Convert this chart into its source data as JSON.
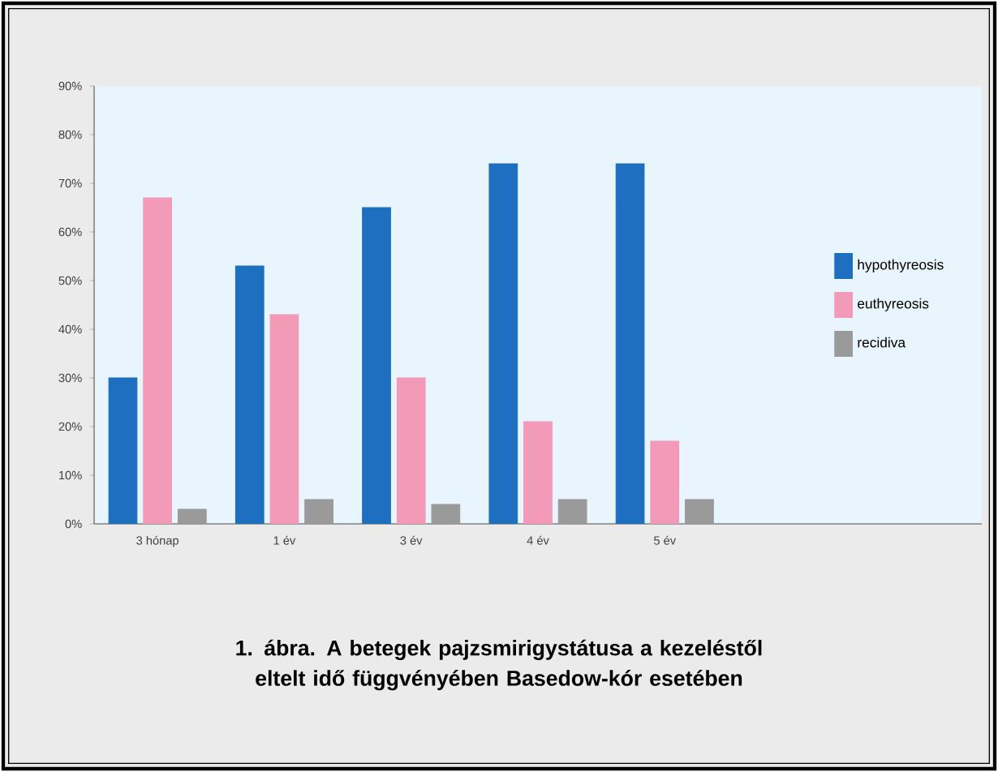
{
  "chart_data": {
    "type": "bar",
    "title": "1. ábra. A betegek pajzsmirigystátusa a kezeléstől eltelt idő függvényében Basedow-kór esetében",
    "categories": [
      "3 hónap",
      "1 év",
      "3 év",
      "4 év",
      "5 év"
    ],
    "series": [
      {
        "name": "hypothyreosis",
        "color": "#1f6fc0",
        "values": [
          30,
          53,
          65,
          74,
          74
        ]
      },
      {
        "name": "euthyreosis",
        "color": "#f29ab8",
        "values": [
          67,
          43,
          30,
          21,
          17
        ]
      },
      {
        "name": "recidiva",
        "color": "#9a9a9a",
        "values": [
          3,
          5,
          4,
          5,
          5
        ]
      }
    ],
    "ylim": [
      0,
      90
    ],
    "yticks": [
      {
        "value": 0,
        "label": "0%"
      },
      {
        "value": 10,
        "label": "10%"
      },
      {
        "value": 20,
        "label": "20%"
      },
      {
        "value": 30,
        "label": "30%"
      },
      {
        "value": 40,
        "label": "40%"
      },
      {
        "value": 50,
        "label": "50%"
      },
      {
        "value": 60,
        "label": "60%"
      },
      {
        "value": 70,
        "label": "70%"
      },
      {
        "value": 80,
        "label": "80%"
      },
      {
        "value": 90,
        "label": "90%"
      }
    ],
    "legend": "right",
    "grid": false
  }
}
